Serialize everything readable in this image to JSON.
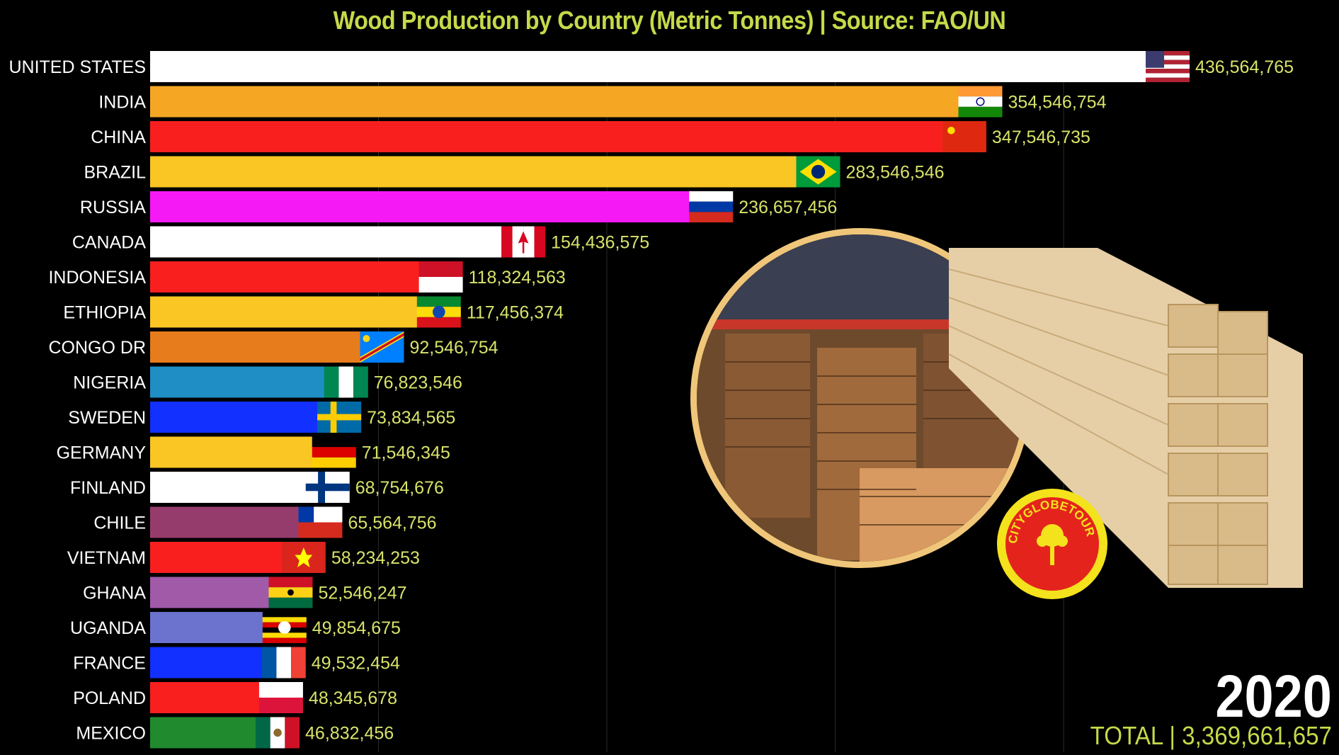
{
  "title": "Wood Production by Country (Metric Tonnes) | Source: FAO/UN",
  "year": "2020",
  "total": {
    "label": "TOTAL",
    "separator": "|",
    "value": "3,369,661,657"
  },
  "logo": {
    "text": "CITYGLOBETOUR",
    "colors": {
      "ring": "#f4e21c",
      "fill": "#e4241c"
    }
  },
  "colors": {
    "background": "#000000",
    "title": "#c6d94a",
    "value_label": "#d8e36a",
    "gridline": "#2a2a2a"
  },
  "chart_data": {
    "type": "bar",
    "orientation": "horizontal",
    "categories": [
      "UNITED STATES",
      "INDIA",
      "CHINA",
      "BRAZIL",
      "RUSSIA",
      "CANADA",
      "INDONESIA",
      "ETHIOPIA",
      "CONGO DR",
      "NIGERIA",
      "SWEDEN",
      "GERMANY",
      "FINLAND",
      "CHILE",
      "VIETNAM",
      "GHANA",
      "UGANDA",
      "FRANCE",
      "POLAND",
      "MEXICO"
    ],
    "values": [
      436564765,
      354546754,
      347546735,
      283546546,
      236657456,
      154436575,
      118324563,
      117456374,
      92546754,
      76823546,
      73834565,
      71546345,
      68754676,
      65564756,
      58234253,
      52546247,
      49854675,
      49532454,
      48345678,
      46832456
    ],
    "value_labels": [
      "436,564,765",
      "354,546,754",
      "347,546,735",
      "283,546,546",
      "236,657,456",
      "154,436,575",
      "118,324,563",
      "117,456,374",
      "92,546,754",
      "76,823,546",
      "73,834,565",
      "71,546,345",
      "68,754,676",
      "65,564,756",
      "58,234,253",
      "52,546,247",
      "49,854,675",
      "49,532,454",
      "48,345,678",
      "46,832,456"
    ],
    "bar_colors": [
      "#ffffff",
      "#f5a623",
      "#fa1f1f",
      "#f9c623",
      "#f519f5",
      "#ffffff",
      "#fa1f1f",
      "#f9c623",
      "#e67c1c",
      "#1e8ec4",
      "#1230ff",
      "#f9c623",
      "#ffffff",
      "#953c6c",
      "#fa1f1f",
      "#a05aa8",
      "#6c73cf",
      "#1230ff",
      "#fa1f1f",
      "#1f8a2e"
    ],
    "flag_icons": [
      "us-flag-icon",
      "india-flag-icon",
      "china-flag-icon",
      "brazil-flag-icon",
      "russia-flag-icon",
      "canada-flag-icon",
      "indonesia-flag-icon",
      "ethiopia-flag-icon",
      "congo-dr-flag-icon",
      "nigeria-flag-icon",
      "sweden-flag-icon",
      "germany-flag-icon",
      "finland-flag-icon",
      "chile-flag-icon",
      "vietnam-flag-icon",
      "ghana-flag-icon",
      "uganda-flag-icon",
      "france-flag-icon",
      "poland-flag-icon",
      "mexico-flag-icon"
    ],
    "xlim": [
      0,
      450000000
    ],
    "grid": true
  }
}
